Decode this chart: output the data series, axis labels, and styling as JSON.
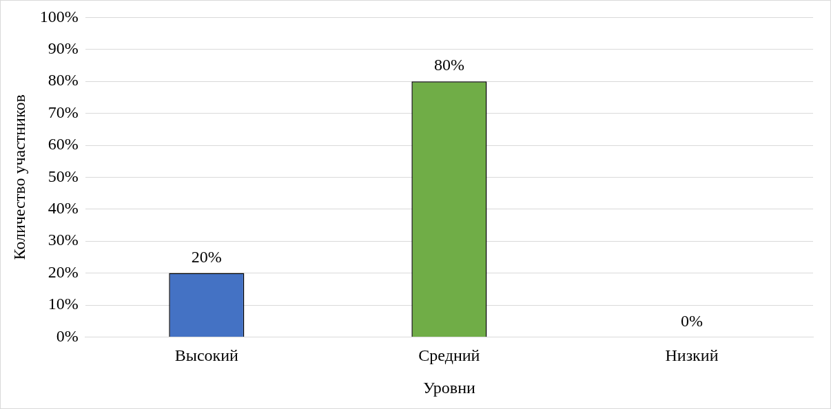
{
  "chart_data": {
    "type": "bar",
    "xlabel": "Уровни",
    "ylabel": "Количество участников",
    "categories": [
      "Высокий",
      "Средний",
      "Низкий"
    ],
    "values": [
      20,
      80,
      0
    ],
    "colors": [
      "#4472c4",
      "#70ad47",
      "#a5a5a5"
    ],
    "value_labels": [
      "20%",
      "80%",
      "0%"
    ],
    "ylim": [
      0,
      100
    ],
    "yticks": [
      {
        "value": 0,
        "label": "0%"
      },
      {
        "value": 10,
        "label": "10%"
      },
      {
        "value": 20,
        "label": "20%"
      },
      {
        "value": 30,
        "label": "30%"
      },
      {
        "value": 40,
        "label": "40%"
      },
      {
        "value": 50,
        "label": "50%"
      },
      {
        "value": 60,
        "label": "60%"
      },
      {
        "value": 70,
        "label": "70%"
      },
      {
        "value": 80,
        "label": "80%"
      },
      {
        "value": 90,
        "label": "90%"
      },
      {
        "value": 100,
        "label": "100%"
      }
    ],
    "grid": "y",
    "legend": false
  }
}
